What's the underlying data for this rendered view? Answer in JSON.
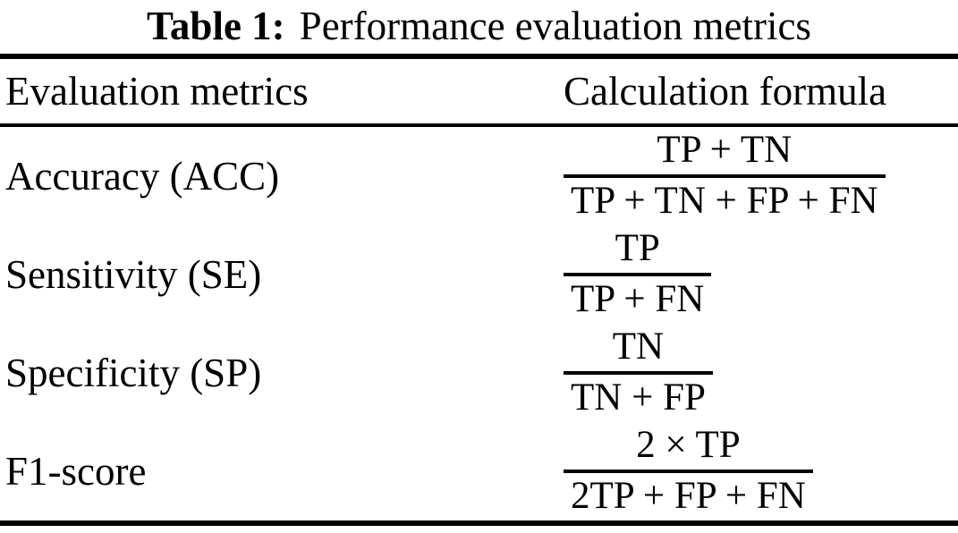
{
  "caption": {
    "label": "Table 1:",
    "text": "Performance evaluation metrics"
  },
  "table": {
    "headers": [
      "Evaluation metrics",
      "Calculation formula"
    ],
    "rows": [
      {
        "metric": "Accuracy (ACC)",
        "formula": {
          "numerator": "TP + TN",
          "denominator": "TP + TN + FP + FN"
        }
      },
      {
        "metric": "Sensitivity (SE)",
        "formula": {
          "numerator": "TP",
          "denominator": "TP + FN"
        }
      },
      {
        "metric": "Specificity (SP)",
        "formula": {
          "numerator": "TN",
          "denominator": "TN + FP"
        }
      },
      {
        "metric": "F1-score",
        "formula": {
          "numerator": "2 × TP",
          "denominator": "2TP + FP + FN"
        }
      }
    ]
  }
}
